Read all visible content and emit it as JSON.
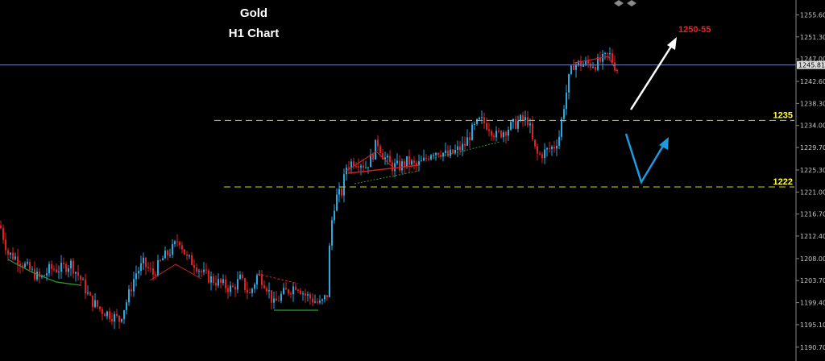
{
  "chart_data": {
    "type": "candlestick",
    "title": "Gold",
    "subtitle": "H1 Chart",
    "ylim": [
      1188.0,
      1258.5
    ],
    "y_ticks": [
      "1255.60",
      "1251.30",
      "1247.00",
      "1242.60",
      "1238.30",
      "1234.00",
      "1229.70",
      "1225.30",
      "1221.00",
      "1216.70",
      "1212.40",
      "1208.00",
      "1203.70",
      "1199.40",
      "1195.10",
      "1190.70"
    ],
    "current_price": "1245.81",
    "colors": {
      "up": "#2aa8e0",
      "down": "#e02020",
      "background": "#000000"
    },
    "levels": [
      {
        "label": "1235",
        "value": 1235.0,
        "color": "#d4d400"
      },
      {
        "label": "1222",
        "value": 1222.0,
        "color": "#d4d400"
      }
    ],
    "target_label": "1250-55",
    "price_path": [
      [
        0,
        1214.5
      ],
      [
        10,
        1209
      ],
      [
        22,
        1208
      ],
      [
        35,
        1206
      ],
      [
        50,
        1204
      ],
      [
        62,
        1206
      ],
      [
        75,
        1206
      ],
      [
        88,
        1207
      ],
      [
        100,
        1204
      ],
      [
        112,
        1200
      ],
      [
        125,
        1198
      ],
      [
        138,
        1197
      ],
      [
        148,
        1196
      ],
      [
        158,
        1200
      ],
      [
        168,
        1205
      ],
      [
        178,
        1207
      ],
      [
        190,
        1205
      ],
      [
        202,
        1208
      ],
      [
        215,
        1210
      ],
      [
        222,
        1212
      ],
      [
        232,
        1208
      ],
      [
        242,
        1207
      ],
      [
        252,
        1205
      ],
      [
        262,
        1204
      ],
      [
        275,
        1203
      ],
      [
        288,
        1202
      ],
      [
        298,
        1204
      ],
      [
        310,
        1201
      ],
      [
        320,
        1205
      ],
      [
        330,
        1203
      ],
      [
        340,
        1199
      ],
      [
        350,
        1201
      ],
      [
        360,
        1202
      ],
      [
        368,
        1203
      ],
      [
        378,
        1201
      ],
      [
        388,
        1200
      ],
      [
        398,
        1199
      ],
      [
        406,
        1201
      ],
      [
        410,
        1213
      ],
      [
        414,
        1218
      ],
      [
        418,
        1220
      ],
      [
        424,
        1221
      ],
      [
        430,
        1226
      ],
      [
        438,
        1227
      ],
      [
        446,
        1227
      ],
      [
        454,
        1226
      ],
      [
        462,
        1228
      ],
      [
        468,
        1231
      ],
      [
        476,
        1228
      ],
      [
        486,
        1226
      ],
      [
        496,
        1226
      ],
      [
        506,
        1227
      ],
      [
        516,
        1226
      ],
      [
        526,
        1227
      ],
      [
        536,
        1229
      ],
      [
        546,
        1229
      ],
      [
        556,
        1228
      ],
      [
        566,
        1229
      ],
      [
        576,
        1230
      ],
      [
        586,
        1233
      ],
      [
        596,
        1235
      ],
      [
        606,
        1234
      ],
      [
        616,
        1232
      ],
      [
        626,
        1233
      ],
      [
        636,
        1234
      ],
      [
        646,
        1235
      ],
      [
        656,
        1235
      ],
      [
        662,
        1230
      ],
      [
        668,
        1228
      ],
      [
        678,
        1229
      ],
      [
        688,
        1230
      ],
      [
        694,
        1232
      ],
      [
        700,
        1238
      ],
      [
        706,
        1243
      ],
      [
        712,
        1246
      ],
      [
        720,
        1246
      ],
      [
        730,
        1246
      ],
      [
        740,
        1246
      ],
      [
        750,
        1247
      ],
      [
        756,
        1248
      ],
      [
        762,
        1246
      ],
      [
        766,
        1245
      ]
    ]
  }
}
